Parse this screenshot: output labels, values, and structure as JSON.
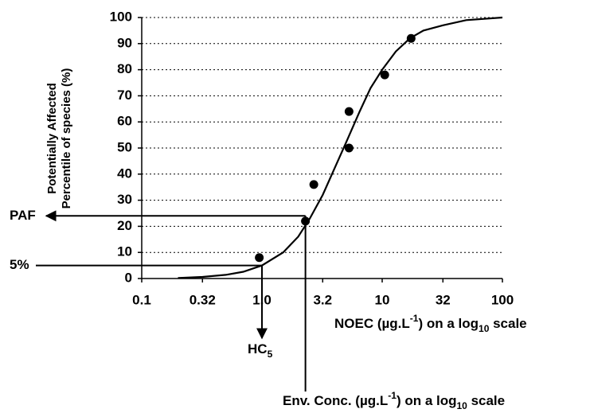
{
  "chart_data": {
    "type": "scatter",
    "y_label_lines": [
      "Potentially Affected",
      "Percentile of species (%)"
    ],
    "x_label_parts": [
      "NOEC (µg.L",
      "-1",
      ") on a log",
      "10",
      " scale"
    ],
    "log_x": true,
    "xlim": [
      0.1,
      100
    ],
    "xticks": [
      0.1,
      0.32,
      {
        "value": 1,
        "label": "1.0"
      },
      3.2,
      10,
      32,
      100
    ],
    "ylim": [
      0,
      100
    ],
    "yticks": [
      0,
      10,
      20,
      30,
      40,
      50,
      60,
      70,
      80,
      90,
      100
    ],
    "grid": true,
    "color": "#000000",
    "x": [
      0.95,
      2.3,
      2.7,
      5.3,
      5.3,
      10.5,
      17.4
    ],
    "values": [
      8,
      22,
      36,
      50,
      64,
      78,
      92
    ],
    "curve": {
      "x": [
        0.2,
        0.32,
        0.5,
        0.7,
        1,
        1.5,
        2,
        2.5,
        3.2,
        4,
        5,
        6.5,
        8,
        10,
        13,
        17,
        22,
        32,
        50,
        100
      ],
      "values": [
        0.2,
        0.6,
        1.4,
        2.6,
        5,
        10,
        16,
        23,
        32,
        42,
        52,
        64,
        73,
        80,
        87,
        92,
        95,
        97,
        99,
        100
      ]
    },
    "paf": {
      "label": "PAF",
      "value": 24
    },
    "five_percent": {
      "label": "5%",
      "value": 5
    },
    "hc5": {
      "label_parts": [
        "HC",
        "5"
      ],
      "value": 1
    },
    "env_conc": {
      "label_parts": [
        "Env. Conc. (µg.L",
        "-1",
        ") on a log",
        "10",
        "  scale"
      ],
      "value": 2.3
    }
  }
}
